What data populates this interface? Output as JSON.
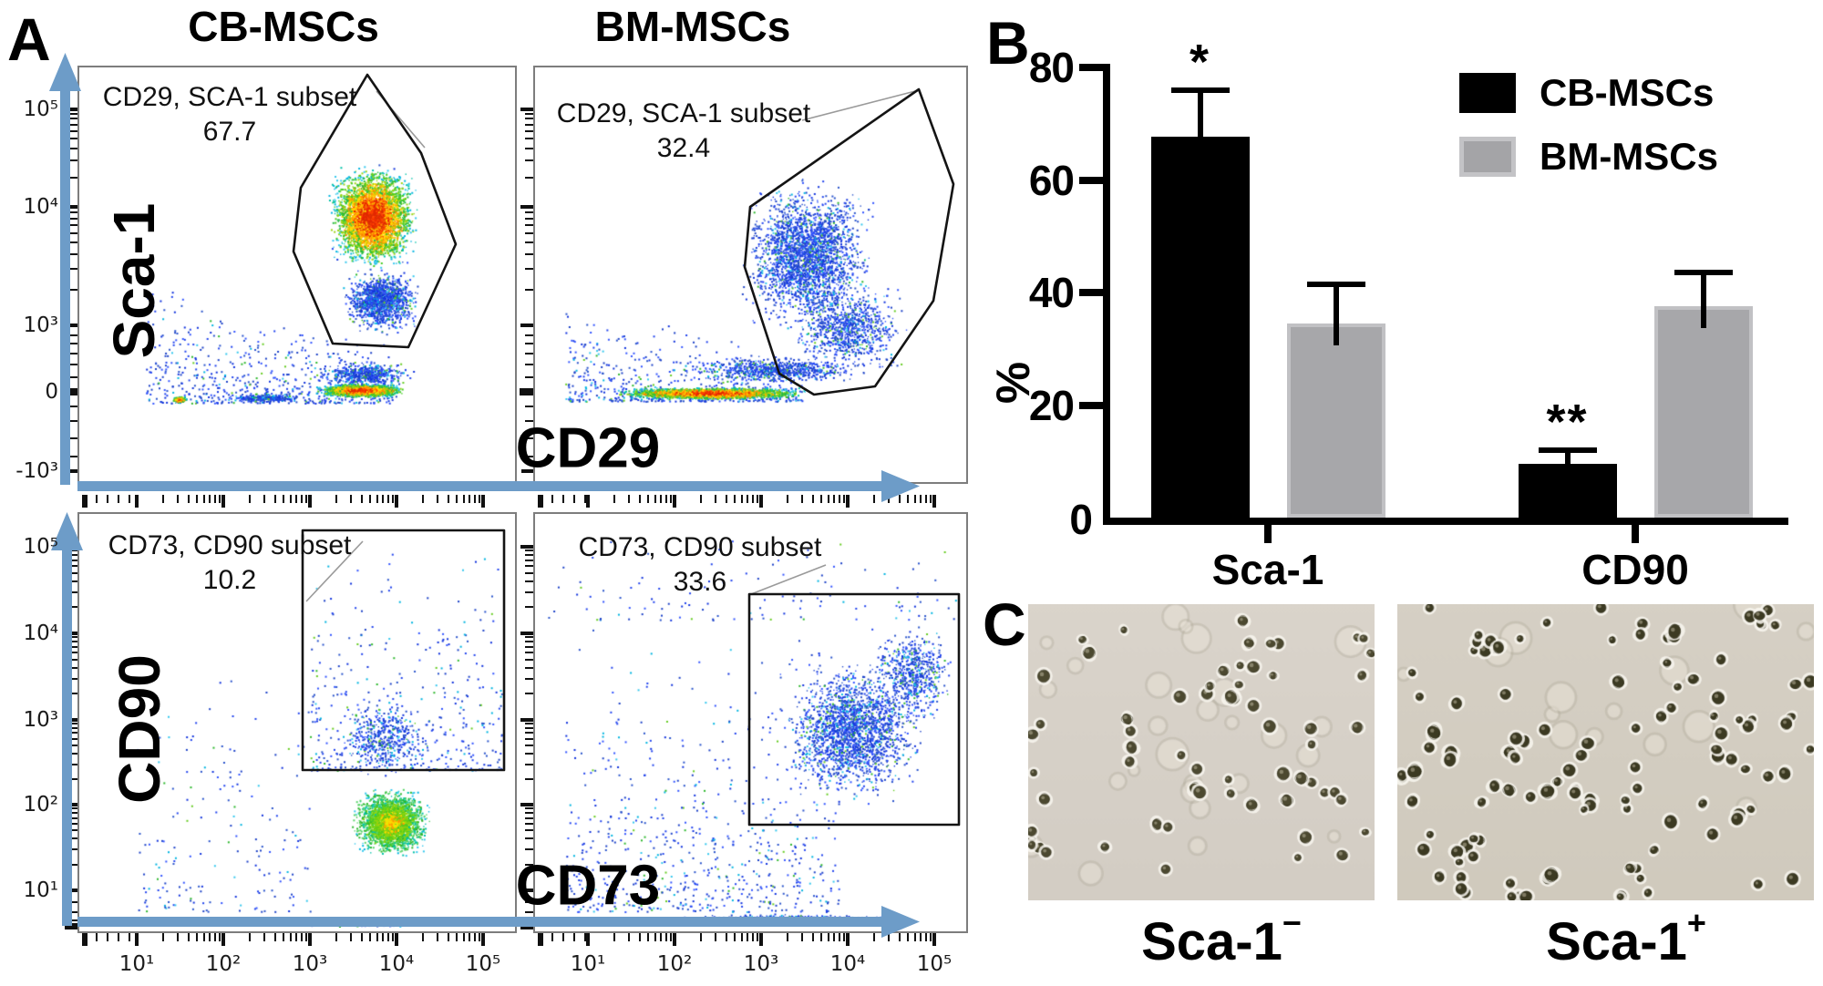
{
  "figure": {
    "panelA": {
      "label": "A",
      "columns": [
        {
          "title": "CB-MSCs"
        },
        {
          "title": "BM-MSCs"
        }
      ],
      "plots": {
        "tl": {
          "gate_label": "CD29, SCA-1 subset",
          "gate_percent": "67.7"
        },
        "tr": {
          "gate_label": "CD29, SCA-1 subset",
          "gate_percent": "32.4"
        },
        "bl": {
          "gate_label": "CD73, CD90 subset",
          "gate_percent": "10.2"
        },
        "br": {
          "gate_label": "CD73, CD90 subset",
          "gate_percent": "33.6"
        }
      },
      "axis_labels": {
        "top_y": "Sca-1",
        "top_x": "CD29",
        "bottom_y": "CD90",
        "bottom_x": "CD73"
      },
      "y_ticks_top": [
        "10⁵",
        "10⁴",
        "10³",
        "0",
        "-10³"
      ],
      "y_ticks_bottom": [
        "10⁵",
        "10⁴",
        "10³",
        "10²",
        "10¹"
      ],
      "x_ticks_bottom": [
        "10¹",
        "10²",
        "10³",
        "10⁴",
        "10⁵"
      ]
    },
    "panelB": {
      "label": "B",
      "ylabel": "%",
      "legend": [
        {
          "label": "CB-MSCs"
        },
        {
          "label": "BM-MSCs"
        }
      ]
    },
    "panelC": {
      "label": "C",
      "captions": [
        {
          "base": "Sca-1",
          "sup": "−"
        },
        {
          "base": "Sca-1",
          "sup": "+"
        }
      ]
    }
  },
  "chart_data": {
    "type": "bar",
    "categories": [
      "Sca-1",
      "CD90"
    ],
    "series": [
      {
        "name": "CB-MSCs",
        "color": "#000000",
        "values": [
          67.7,
          9.5
        ],
        "errors": [
          8.3,
          2.5
        ],
        "significance": [
          "*",
          "**"
        ]
      },
      {
        "name": "BM-MSCs",
        "color": "#a7a7aa",
        "values": [
          34.5,
          37.5
        ],
        "errors": [
          7.0,
          6.0
        ],
        "significance": [
          "",
          ""
        ]
      }
    ],
    "title": "",
    "xlabel": "",
    "ylabel": "%",
    "ylim": [
      0,
      80
    ],
    "yticks": [
      0,
      20,
      40,
      60,
      80
    ],
    "grid": false,
    "legend_position": "top-right",
    "flow_gate_percentages": {
      "CB-MSCs_Sca1": 67.7,
      "BM-MSCs_Sca1": 32.4,
      "CB-MSCs_CD90": 10.2,
      "BM-MSCs_CD90": 33.6
    }
  }
}
